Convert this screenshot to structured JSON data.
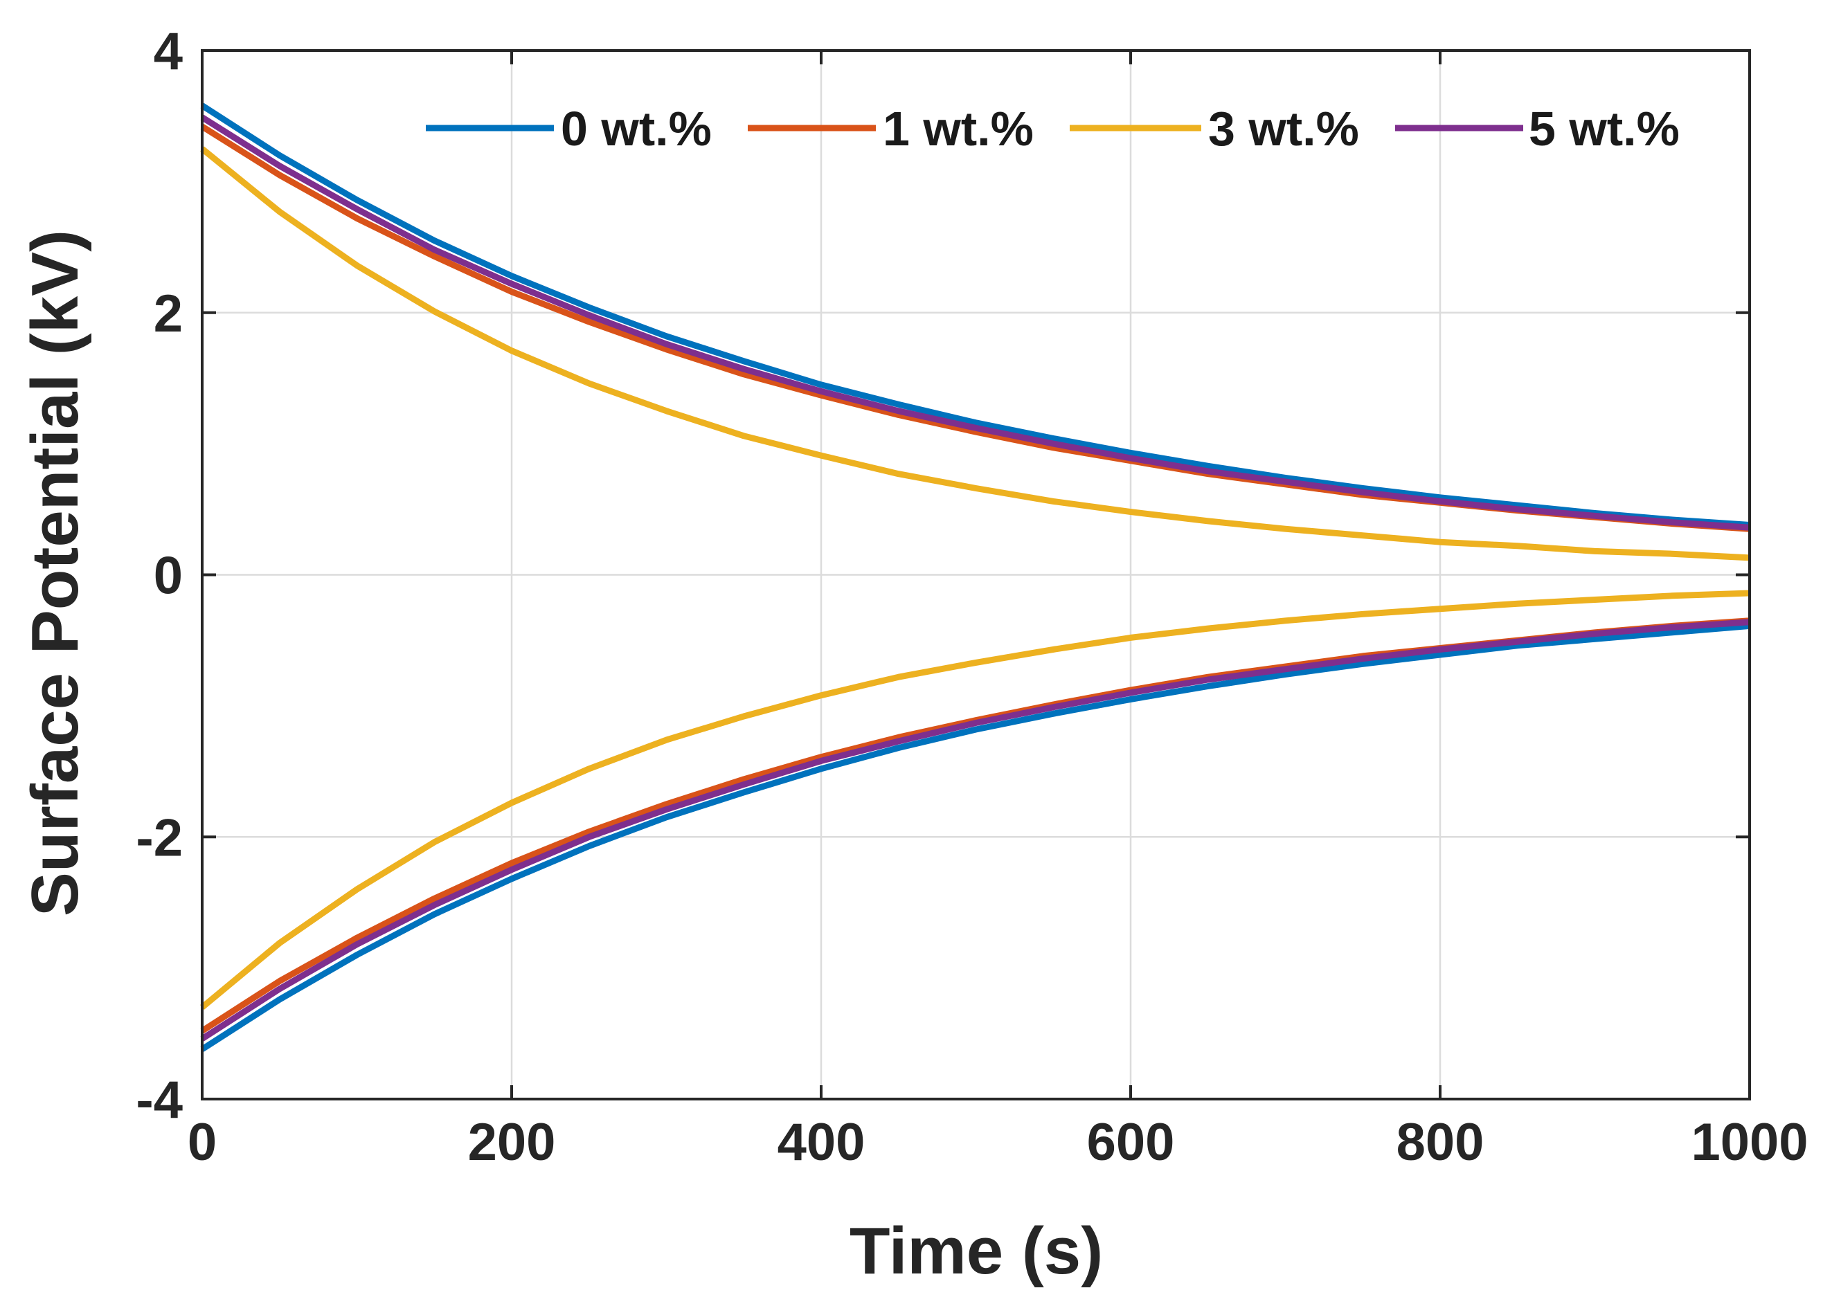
{
  "chart_data": {
    "type": "line",
    "xlabel": "Time (s)",
    "ylabel": "Surface Potential (kV)",
    "xlim": [
      0,
      1000
    ],
    "ylim": [
      -4,
      4
    ],
    "xticks": [
      0,
      200,
      400,
      600,
      800,
      1000
    ],
    "yticks": [
      -4,
      -2,
      0,
      2,
      4
    ],
    "grid": true,
    "legend_position": "top-right, horizontal",
    "x": [
      0,
      50,
      100,
      150,
      200,
      250,
      300,
      350,
      400,
      450,
      500,
      550,
      600,
      650,
      700,
      750,
      800,
      850,
      900,
      950,
      1000
    ],
    "series": [
      {
        "name": "0 wt.%",
        "color": "#0072BD",
        "positive": [
          3.58,
          3.2,
          2.86,
          2.55,
          2.28,
          2.04,
          1.82,
          1.63,
          1.45,
          1.3,
          1.16,
          1.04,
          0.93,
          0.83,
          0.74,
          0.66,
          0.59,
          0.53,
          0.47,
          0.42,
          0.38
        ],
        "negative": [
          -3.62,
          -3.24,
          -2.9,
          -2.59,
          -2.32,
          -2.07,
          -1.85,
          -1.66,
          -1.48,
          -1.32,
          -1.18,
          -1.06,
          -0.95,
          -0.85,
          -0.76,
          -0.68,
          -0.61,
          -0.54,
          -0.49,
          -0.44,
          -0.39
        ]
      },
      {
        "name": "1 wt.%",
        "color": "#D95319",
        "positive": [
          3.42,
          3.05,
          2.72,
          2.43,
          2.16,
          1.93,
          1.72,
          1.53,
          1.37,
          1.22,
          1.09,
          0.97,
          0.87,
          0.77,
          0.69,
          0.61,
          0.55,
          0.49,
          0.44,
          0.39,
          0.35
        ],
        "negative": [
          -3.48,
          -3.1,
          -2.77,
          -2.47,
          -2.2,
          -1.96,
          -1.75,
          -1.56,
          -1.39,
          -1.24,
          -1.11,
          -0.99,
          -0.88,
          -0.78,
          -0.7,
          -0.62,
          -0.56,
          -0.5,
          -0.44,
          -0.39,
          -0.35
        ]
      },
      {
        "name": "3 wt.%",
        "color": "#EDB120",
        "positive": [
          3.25,
          2.77,
          2.36,
          2.01,
          1.71,
          1.46,
          1.25,
          1.06,
          0.91,
          0.77,
          0.66,
          0.56,
          0.48,
          0.41,
          0.35,
          0.3,
          0.25,
          0.22,
          0.18,
          0.16,
          0.13
        ],
        "negative": [
          -3.3,
          -2.81,
          -2.4,
          -2.04,
          -1.74,
          -1.48,
          -1.26,
          -1.08,
          -0.92,
          -0.78,
          -0.67,
          -0.57,
          -0.48,
          -0.41,
          -0.35,
          -0.3,
          -0.26,
          -0.22,
          -0.19,
          -0.16,
          -0.14
        ]
      },
      {
        "name": "5 wt.%",
        "color": "#7E2F8E",
        "positive": [
          3.49,
          3.12,
          2.79,
          2.48,
          2.22,
          1.98,
          1.76,
          1.57,
          1.4,
          1.25,
          1.12,
          1.0,
          0.89,
          0.79,
          0.71,
          0.63,
          0.56,
          0.5,
          0.45,
          0.4,
          0.36
        ],
        "negative": [
          -3.54,
          -3.16,
          -2.82,
          -2.52,
          -2.25,
          -2.0,
          -1.79,
          -1.6,
          -1.42,
          -1.27,
          -1.13,
          -1.01,
          -0.9,
          -0.8,
          -0.72,
          -0.64,
          -0.57,
          -0.51,
          -0.45,
          -0.4,
          -0.36
        ]
      }
    ]
  }
}
